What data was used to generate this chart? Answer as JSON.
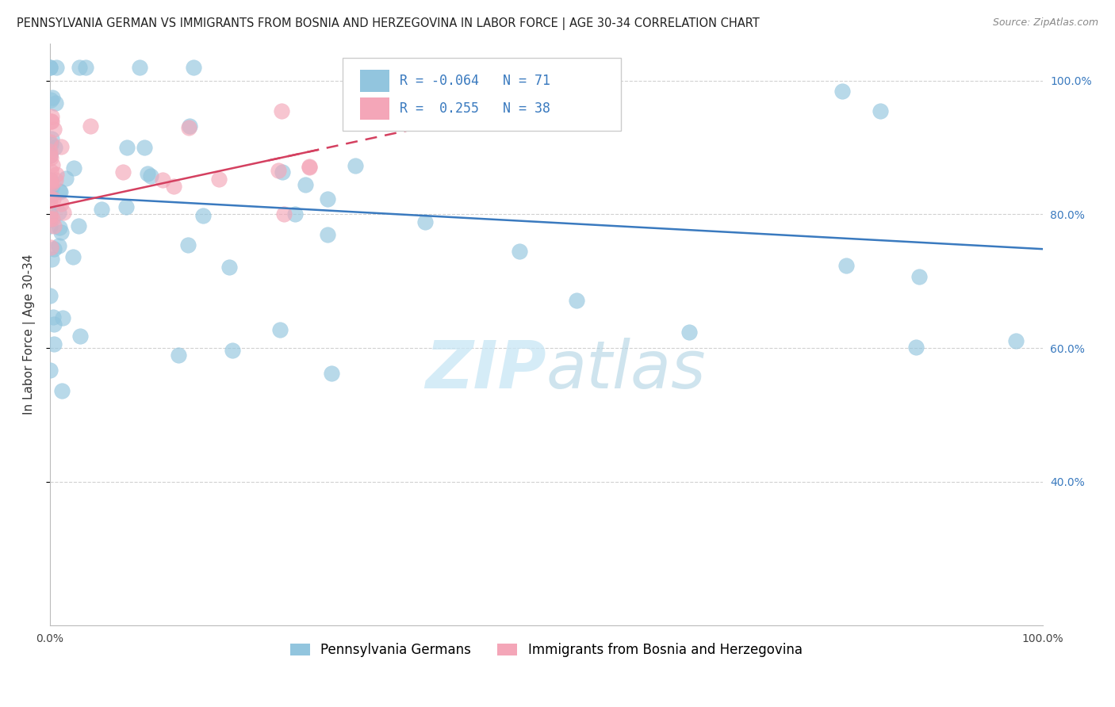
{
  "title": "PENNSYLVANIA GERMAN VS IMMIGRANTS FROM BOSNIA AND HERZEGOVINA IN LABOR FORCE | AGE 30-34 CORRELATION CHART",
  "source": "Source: ZipAtlas.com",
  "ylabel": "In Labor Force | Age 30-34",
  "legend_label_blue": "Pennsylvania Germans",
  "legend_label_pink": "Immigrants from Bosnia and Herzegovina",
  "R_blue": -0.064,
  "N_blue": 71,
  "R_pink": 0.255,
  "N_pink": 38,
  "blue_color": "#92c5de",
  "pink_color": "#f4a6b8",
  "blue_line_color": "#3a7abf",
  "pink_line_color": "#d44060",
  "background_color": "#ffffff",
  "grid_color": "#cccccc",
  "watermark_color": "#c8e6f5",
  "title_fontsize": 10.5,
  "source_fontsize": 9,
  "axis_label_fontsize": 11,
  "tick_fontsize": 10,
  "legend_fontsize": 12
}
